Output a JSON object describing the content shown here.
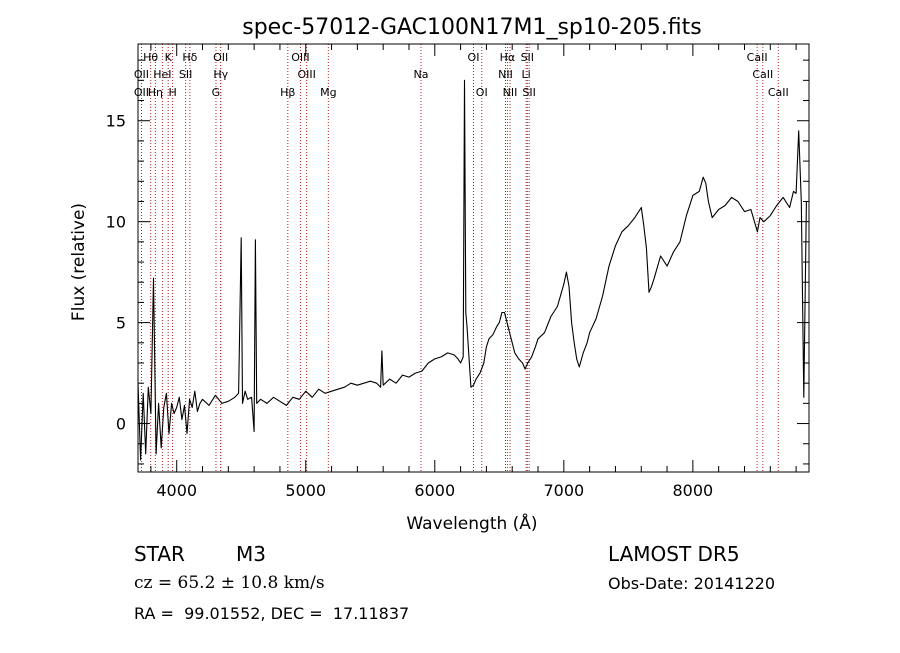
{
  "chart_data": {
    "type": "line",
    "title": "spec-57012-GAC100N17M1_sp10-205.fits",
    "xlabel": "Wavelength (Å)",
    "ylabel": "Flux (relative)",
    "xlim": [
      3700,
      8900
    ],
    "ylim": [
      -2.4,
      18.8
    ],
    "xticks": [
      {
        "v": 4000,
        "label": "4000"
      },
      {
        "v": 5000,
        "label": "5000"
      },
      {
        "v": 6000,
        "label": "6000"
      },
      {
        "v": 7000,
        "label": "7000"
      },
      {
        "v": 8000,
        "label": "8000"
      }
    ],
    "yticks": [
      {
        "v": 0,
        "label": "0"
      },
      {
        "v": 5,
        "label": "5"
      },
      {
        "v": 10,
        "label": "10"
      },
      {
        "v": 15,
        "label": "15"
      }
    ],
    "grid": false,
    "line_color": "#000000",
    "marker_color": "#b22222",
    "lines": [
      {
        "label": "Hθ",
        "x": 3798,
        "row": 1
      },
      {
        "label": "K",
        "x": 3934,
        "row": 1
      },
      {
        "label": "Hδ",
        "x": 4102,
        "row": 1
      },
      {
        "label": "OII",
        "x": 4341,
        "row": 1
      },
      {
        "label": "OIII",
        "x": 4959,
        "row": 1
      },
      {
        "label": "OI",
        "x": 6300,
        "row": 1
      },
      {
        "label": "Hα",
        "x": 6563,
        "row": 1
      },
      {
        "label": "SII",
        "x": 6717,
        "row": 1
      },
      {
        "label": "CaII",
        "x": 8498,
        "row": 1
      },
      {
        "label": "OII",
        "x": 3727,
        "row": 2
      },
      {
        "label": "HeI",
        "x": 3889,
        "row": 2
      },
      {
        "label": "SII",
        "x": 4069,
        "row": 2
      },
      {
        "label": "Hγ",
        "x": 4341,
        "row": 2
      },
      {
        "label": "OIII",
        "x": 5007,
        "row": 2
      },
      {
        "label": "Na",
        "x": 5893,
        "row": 2
      },
      {
        "label": "NII",
        "x": 6548,
        "row": 2
      },
      {
        "label": "Li",
        "x": 6708,
        "row": 2
      },
      {
        "label": "CaII",
        "x": 8542,
        "row": 2
      },
      {
        "label": "OII",
        "x": 3727,
        "row": 3
      },
      {
        "label": "Hη",
        "x": 3835,
        "row": 3
      },
      {
        "label": "H",
        "x": 3968,
        "row": 3
      },
      {
        "label": "G",
        "x": 4304,
        "row": 3
      },
      {
        "label": "Hβ",
        "x": 4861,
        "row": 3
      },
      {
        "label": "Mg",
        "x": 5175,
        "row": 3
      },
      {
        "label": "OI",
        "x": 6364,
        "row": 3
      },
      {
        "label": "NII",
        "x": 6583,
        "row": 3
      },
      {
        "label": "SII",
        "x": 6731,
        "row": 3
      },
      {
        "label": "CaII",
        "x": 8662,
        "row": 3
      }
    ],
    "series": [
      {
        "x": [
          3700,
          3720,
          3740,
          3760,
          3780,
          3800,
          3820,
          3840,
          3860,
          3880,
          3900,
          3920,
          3940,
          3960,
          3980,
          4000,
          4020,
          4040,
          4060,
          4080,
          4100,
          4120,
          4140,
          4160,
          4180,
          4200,
          4250,
          4300,
          4350,
          4400,
          4450,
          4480,
          4500,
          4510,
          4530,
          4550,
          4580,
          4600,
          4610,
          4620,
          4650,
          4700,
          4750,
          4800,
          4850,
          4900,
          4950,
          5000,
          5050,
          5100,
          5150,
          5200,
          5250,
          5300,
          5350,
          5400,
          5450,
          5500,
          5550,
          5580,
          5590,
          5600,
          5650,
          5700,
          5750,
          5800,
          5850,
          5900,
          5950,
          6000,
          6050,
          6100,
          6150,
          6180,
          6200,
          6220,
          6230,
          6240,
          6250,
          6280,
          6300,
          6320,
          6350,
          6380,
          6400,
          6420,
          6450,
          6480,
          6500,
          6520,
          6540,
          6560,
          6580,
          6600,
          6620,
          6650,
          6680,
          6700,
          6720,
          6750,
          6780,
          6800,
          6850,
          6900,
          6950,
          7000,
          7020,
          7040,
          7060,
          7080,
          7100,
          7120,
          7150,
          7180,
          7200,
          7250,
          7300,
          7350,
          7400,
          7450,
          7500,
          7550,
          7580,
          7600,
          7620,
          7640,
          7660,
          7680,
          7700,
          7750,
          7800,
          7850,
          7900,
          7950,
          8000,
          8050,
          8080,
          8100,
          8120,
          8150,
          8200,
          8250,
          8300,
          8350,
          8400,
          8450,
          8500,
          8520,
          8550,
          8600,
          8650,
          8700,
          8750,
          8780,
          8800,
          8820,
          8840,
          8860,
          8880
        ],
        "y": [
          2.0,
          -1.8,
          1.5,
          -1.5,
          1.8,
          0.5,
          7.2,
          -1.5,
          1.0,
          -1.2,
          0.8,
          1.5,
          -0.5,
          1.0,
          0.5,
          0.8,
          1.3,
          0.2,
          0.9,
          -0.5,
          1.2,
          0.8,
          1.6,
          0.6,
          1.0,
          1.2,
          0.9,
          1.4,
          1.0,
          1.1,
          1.3,
          1.5,
          9.2,
          1.0,
          1.6,
          1.2,
          1.3,
          -0.4,
          9.1,
          1.0,
          1.2,
          1.0,
          1.3,
          1.1,
          0.9,
          1.3,
          1.2,
          1.6,
          1.3,
          1.7,
          1.5,
          1.6,
          1.7,
          1.8,
          2.0,
          1.9,
          2.0,
          2.1,
          2.0,
          1.8,
          3.6,
          1.9,
          2.2,
          2.0,
          2.4,
          2.3,
          2.5,
          2.6,
          3.0,
          3.2,
          3.3,
          3.5,
          3.4,
          3.2,
          3.0,
          3.3,
          17.0,
          5.5,
          4.8,
          1.8,
          1.9,
          2.2,
          2.5,
          3.0,
          3.8,
          4.2,
          4.4,
          4.8,
          5.0,
          5.5,
          5.5,
          5.0,
          4.5,
          4.0,
          3.5,
          3.2,
          3.0,
          2.7,
          3.0,
          3.3,
          3.8,
          4.2,
          4.5,
          5.3,
          5.8,
          6.9,
          7.5,
          6.8,
          5.0,
          4.0,
          3.2,
          2.8,
          3.5,
          4.0,
          4.5,
          5.2,
          6.3,
          7.8,
          8.8,
          9.5,
          9.8,
          10.2,
          10.5,
          10.7,
          9.8,
          8.7,
          6.5,
          6.8,
          7.2,
          8.3,
          7.8,
          8.5,
          9.0,
          10.3,
          11.3,
          11.5,
          12.2,
          11.9,
          11.0,
          10.2,
          10.6,
          10.8,
          11.2,
          11.0,
          10.5,
          10.6,
          9.5,
          10.2,
          10.0,
          10.3,
          10.8,
          11.2,
          10.7,
          11.5,
          11.4,
          14.5,
          11.0,
          1.3,
          11.0
        ]
      }
    ]
  },
  "info": {
    "object_type": "STAR",
    "subclass": "M3",
    "survey": "LAMOST DR5",
    "cz_text": "cz = 65.2 ± 10.8 km/s",
    "obs_date": "Obs-Date: 20141220",
    "coords": "RA =  99.01552, DEC =  17.11837"
  }
}
